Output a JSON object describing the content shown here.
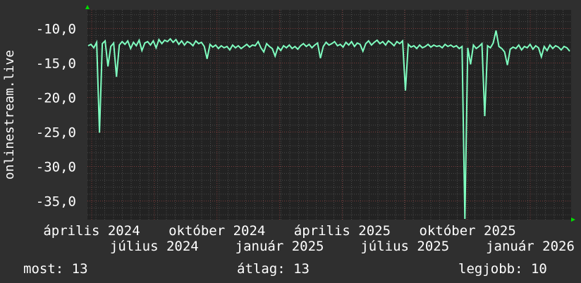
{
  "chart_data": {
    "type": "line",
    "ylabel": "onlinestream.live",
    "ylim": [
      -37.7,
      -7.3
    ],
    "yticks": [
      -10,
      -15,
      -20,
      -25,
      -30,
      -35
    ],
    "ytick_labels": [
      "-10,0",
      "-15,0",
      "-20,0",
      "-25,0",
      "-30,0",
      "-35,0"
    ],
    "xtick_labels": [
      "április 2024",
      "július 2024",
      "október 2024",
      "január 2025",
      "április 2025",
      "július 2025",
      "október 2025",
      "január 2026"
    ],
    "grid": true,
    "line_color": "#7fffc0",
    "values": [
      -12.5,
      -12.3,
      -12.8,
      -12.0,
      -25.1,
      -12.2,
      -11.8,
      -15.5,
      -12.6,
      -12.1,
      -17.0,
      -12.4,
      -11.9,
      -12.3,
      -11.8,
      -12.9,
      -12.0,
      -12.5,
      -11.7,
      -13.2,
      -12.1,
      -11.9,
      -12.4,
      -11.8,
      -12.8,
      -11.6,
      -12.2,
      -11.7,
      -11.9,
      -11.5,
      -12.0,
      -11.6,
      -12.3,
      -11.8,
      -12.4,
      -11.9,
      -12.1,
      -12.5,
      -11.8,
      -12.2,
      -12.0,
      -12.6,
      -14.4,
      -12.3,
      -12.7,
      -12.4,
      -12.9,
      -12.5,
      -12.8,
      -12.6,
      -13.1,
      -12.4,
      -12.8,
      -12.5,
      -12.9,
      -12.6,
      -12.3,
      -12.7,
      -12.4,
      -12.5,
      -11.9,
      -12.8,
      -13.4,
      -12.2,
      -12.6,
      -12.9,
      -14.0,
      -12.7,
      -13.2,
      -12.5,
      -12.8,
      -12.4,
      -12.9,
      -12.6,
      -13.0,
      -12.5,
      -12.2,
      -12.6,
      -12.3,
      -12.8,
      -12.4,
      -12.1,
      -14.3,
      -12.6,
      -12.0,
      -12.4,
      -12.2,
      -11.9,
      -12.5,
      -12.3,
      -12.7,
      -12.0,
      -12.4,
      -11.9,
      -12.6,
      -12.1,
      -12.3,
      -13.3,
      -12.2,
      -11.8,
      -12.4,
      -12.0,
      -11.7,
      -12.2,
      -11.9,
      -12.4,
      -11.8,
      -12.1,
      -12.5,
      -11.9,
      -12.2,
      -11.8,
      -19.0,
      -12.3,
      -12.7,
      -12.5,
      -12.9,
      -12.4,
      -12.8,
      -12.6,
      -12.3,
      -12.7,
      -12.4,
      -12.6,
      -12.5,
      -12.8,
      -12.3,
      -12.6,
      -12.4,
      -12.7,
      -12.5,
      -12.9,
      -12.6,
      -37.6,
      -12.8,
      -15.2,
      -12.4,
      -12.9,
      -12.6,
      -12.2,
      -22.7,
      -12.5,
      -12.8,
      -12.1,
      -10.3,
      -12.6,
      -12.9,
      -13.4,
      -15.3,
      -13.0,
      -12.7,
      -12.9,
      -12.4,
      -13.1,
      -12.6,
      -12.8,
      -12.3,
      -13.0,
      -12.5,
      -12.8,
      -14.1,
      -12.6,
      -13.2,
      -12.4,
      -12.9,
      -12.5,
      -12.7,
      -13.1,
      -12.6,
      -12.8,
      -13.3
    ]
  },
  "legend": {
    "current": "most: 13",
    "average": "átlag: 13",
    "max": "legjobb: 10"
  }
}
